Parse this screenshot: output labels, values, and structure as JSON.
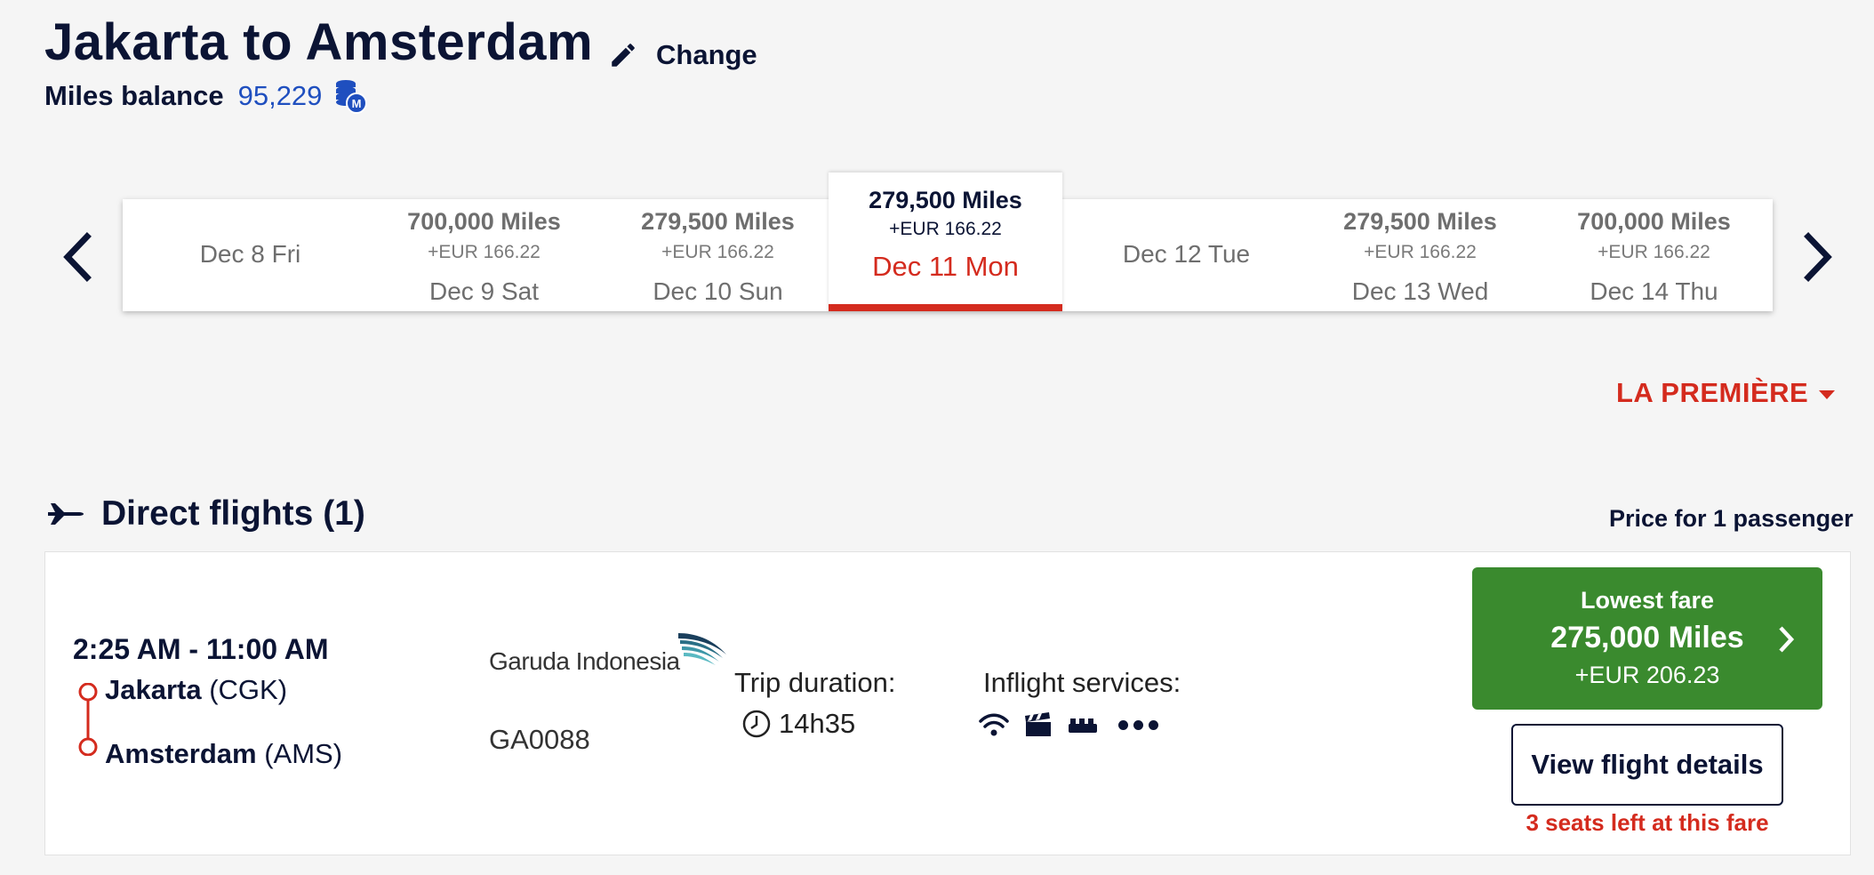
{
  "header": {
    "title": "Jakarta to Amsterdam",
    "change_label": "Change",
    "miles_balance_label": "Miles balance",
    "miles_balance_value": "95,229"
  },
  "date_carousel": {
    "days": [
      {
        "miles": "",
        "eur": "",
        "date": "Dec 8 Fri",
        "active": false
      },
      {
        "miles": "700,000 Miles",
        "eur": "+EUR 166.22",
        "date": "Dec 9 Sat",
        "active": false
      },
      {
        "miles": "279,500 Miles",
        "eur": "+EUR 166.22",
        "date": "Dec 10 Sun",
        "active": false
      },
      {
        "miles": "279,500 Miles",
        "eur": "+EUR 166.22",
        "date": "Dec 11 Mon",
        "active": true
      },
      {
        "miles": "",
        "eur": "",
        "date": "Dec 12 Tue",
        "active": false
      },
      {
        "miles": "279,500 Miles",
        "eur": "+EUR 166.22",
        "date": "Dec 13 Wed",
        "active": false
      },
      {
        "miles": "700,000 Miles",
        "eur": "+EUR 166.22",
        "date": "Dec 14 Thu",
        "active": false
      }
    ]
  },
  "cabin": {
    "label": "LA PREMIÈRE"
  },
  "section": {
    "title": "Direct flights (1)",
    "price_note": "Price for 1 passenger"
  },
  "flight": {
    "times": "2:25 AM - 11:00 AM",
    "origin_city": "Jakarta",
    "origin_code": "(CGK)",
    "dest_city": "Amsterdam",
    "dest_code": "(AMS)",
    "airline_name": "Garuda Indonesia",
    "flight_number": "GA0088",
    "duration_label": "Trip duration:",
    "duration_value": "14h35",
    "services_label": "Inflight services:",
    "services": [
      "wifi-icon",
      "entertainment-icon",
      "seat-icon",
      "more-icon"
    ],
    "fare": {
      "label": "Lowest fare",
      "miles": "275,000 Miles",
      "eur": "+EUR 206.23"
    },
    "details_label": "View flight details",
    "seats_left": "3 seats left at this fare"
  },
  "colors": {
    "navy": "#0b1434",
    "accent_red": "#d42b1e",
    "fare_green": "#3a8a2e",
    "balance_blue": "#1f4fbf"
  }
}
